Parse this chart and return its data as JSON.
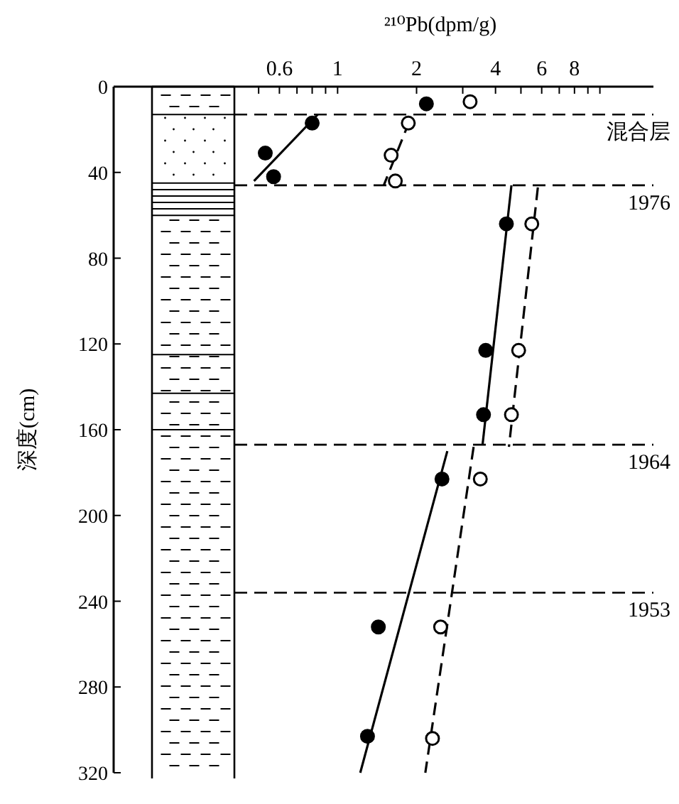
{
  "chart_data": {
    "type": "scatter",
    "xlabel": "²¹⁰Pb(dpm/g)",
    "ylabel": "深度(cm)",
    "log": "x",
    "xlim": [
      0.14,
      16
    ],
    "ylim": [
      320,
      0
    ],
    "xticks": [
      {
        "value": 0.5,
        "label": null
      },
      0.6,
      {
        "value": 0.7,
        "label": null
      },
      {
        "value": 0.8,
        "label": null
      },
      {
        "value": 0.9,
        "label": null
      },
      1,
      2,
      {
        "value": 3,
        "label": null
      },
      4,
      {
        "value": 5,
        "label": null
      },
      6,
      {
        "value": 7,
        "label": null
      },
      8,
      {
        "value": 9,
        "label": null
      },
      {
        "value": 10,
        "label": null
      }
    ],
    "yticks": [
      0,
      40,
      80,
      120,
      160,
      200,
      240,
      280,
      320
    ],
    "marker": "circle",
    "series": [
      {
        "type": "scatter",
        "color": "#000000",
        "x": [
          2.18,
          0.8,
          0.53,
          0.57,
          4.4,
          3.67,
          3.6,
          2.5,
          1.43,
          1.3
        ],
        "values": [
          8,
          17,
          31,
          42,
          64,
          123,
          153,
          183,
          252,
          303
        ]
      },
      {
        "type": "scatter",
        "color": "#ffffff",
        "x": [
          3.2,
          1.86,
          1.6,
          1.66,
          5.5,
          4.9,
          4.6,
          3.5,
          2.47,
          2.3
        ],
        "values": [
          7,
          17,
          32,
          44,
          64,
          123,
          153,
          183,
          252,
          304
        ]
      },
      {
        "type": "line",
        "marker": "none",
        "color": "#000000",
        "line_style": "solid",
        "x": [
          0.48,
          0.84
        ],
        "values": [
          44,
          13
        ]
      },
      {
        "type": "line",
        "marker": "none",
        "color": "#000000",
        "line_style": "solid",
        "x": [
          4.6,
          3.57
        ],
        "values": [
          46,
          167
        ]
      },
      {
        "type": "line",
        "marker": "none",
        "color": "#000000",
        "line_style": "solid",
        "x": [
          2.62,
          1.22
        ],
        "values": [
          170,
          320
        ]
      },
      {
        "type": "line",
        "marker": "none",
        "color": "#000000",
        "line_style": "dashed",
        "x": [
          1.88,
          1.5
        ],
        "values": [
          16,
          46
        ]
      },
      {
        "type": "line",
        "marker": "none",
        "color": "#000000",
        "line_style": "dashed",
        "x": [
          5.8,
          4.5
        ],
        "values": [
          47,
          168
        ]
      },
      {
        "type": "line",
        "marker": "none",
        "color": "#000000",
        "line_style": "dashed",
        "x": [
          3.3,
          2.16
        ],
        "values": [
          168,
          320
        ]
      }
    ],
    "ref_lines": [
      {
        "axis": "y",
        "value": 13,
        "label": "混合层",
        "line_style": "dashed"
      },
      {
        "axis": "y",
        "value": 46,
        "line_style": "dashed"
      },
      {
        "axis": "y",
        "value": 167,
        "line_style": "dashed"
      },
      {
        "axis": "y",
        "value": 236,
        "line_style": "dashed"
      }
    ],
    "annotations": [
      {
        "text": "1976",
        "y": 46
      },
      {
        "text": "1964",
        "y": 167
      },
      {
        "text": "1953",
        "y": 236
      }
    ]
  }
}
